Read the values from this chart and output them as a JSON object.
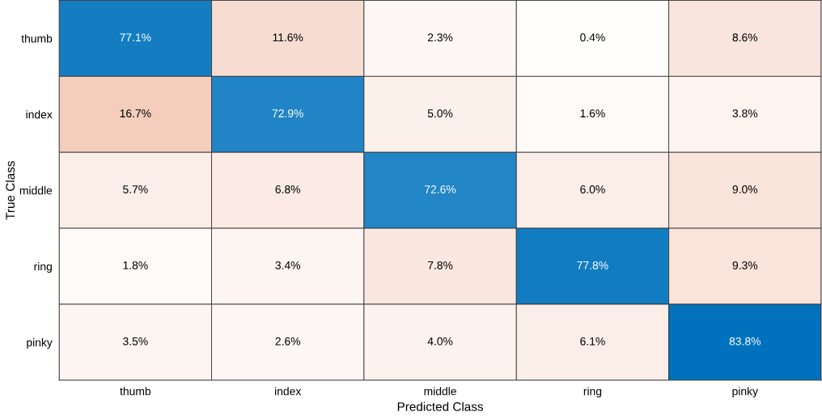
{
  "chart_data": {
    "type": "heatmap",
    "xlabel": "Predicted Class",
    "ylabel": "True Class",
    "categories": [
      "thumb",
      "index",
      "middle",
      "ring",
      "pinky"
    ],
    "y_categories": [
      "thumb",
      "index",
      "middle",
      "ring",
      "pinky"
    ],
    "cells": [
      [
        77.1,
        11.6,
        2.3,
        0.4,
        8.6
      ],
      [
        16.7,
        72.9,
        5.0,
        1.6,
        3.8
      ],
      [
        5.7,
        6.8,
        72.6,
        6.0,
        9.0
      ],
      [
        1.8,
        3.4,
        7.8,
        77.8,
        9.3
      ],
      [
        3.5,
        2.6,
        4.0,
        6.1,
        83.8
      ]
    ],
    "cell_labels": [
      [
        "77.1%",
        "11.6%",
        "2.3%",
        "0.4%",
        "8.6%"
      ],
      [
        "16.7%",
        "72.9%",
        "5.0%",
        "1.6%",
        "3.8%"
      ],
      [
        "5.7%",
        "6.8%",
        "72.6%",
        "6.0%",
        "9.0%"
      ],
      [
        "1.8%",
        "3.4%",
        "7.8%",
        "77.8%",
        "9.3%"
      ],
      [
        "3.5%",
        "2.6%",
        "4.0%",
        "6.1%",
        "83.8%"
      ]
    ]
  }
}
